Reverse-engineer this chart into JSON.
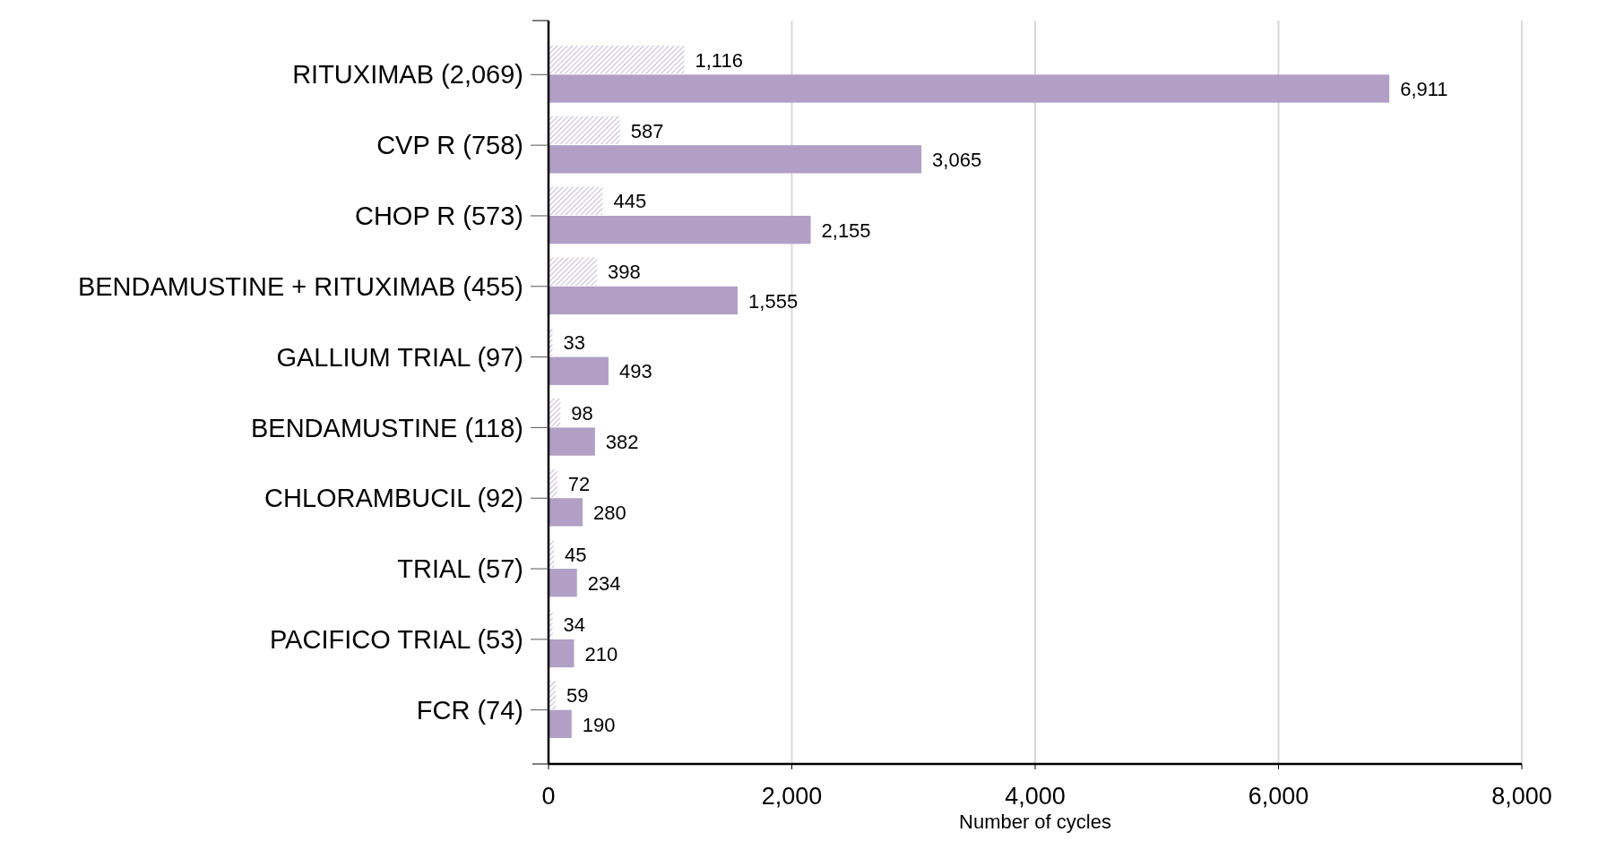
{
  "chart_data": {
    "type": "bar",
    "orientation": "horizontal",
    "xlabel": "Number of cycles",
    "categories": [
      "RITUXIMAB (2,069)",
      "CVP R (758)",
      "CHOP R (573)",
      "BENDAMUSTINE + RITUXIMAB (455)",
      "GALLIUM TRIAL (97)",
      "BENDAMUSTINE (118)",
      "CHLORAMBUCIL (92)",
      "TRIAL (57)",
      "PACIFICO TRIAL (53)",
      "FCR (74)"
    ],
    "series": [
      {
        "color": "#c9bcdb",
        "values": [
          1116,
          587,
          445,
          398,
          33,
          98,
          72,
          45,
          34,
          59
        ],
        "value_labels": [
          "1,116",
          "587",
          "445",
          "398",
          "33",
          "98",
          "72",
          "45",
          "34",
          "59"
        ]
      },
      {
        "color": "#b19fc6",
        "values": [
          6911,
          3065,
          2155,
          1555,
          493,
          382,
          280,
          234,
          210,
          190
        ],
        "value_labels": [
          "6,911",
          "3,065",
          "2,155",
          "1,555",
          "493",
          "382",
          "280",
          "234",
          "210",
          "190"
        ]
      }
    ],
    "xlim": [
      0,
      8000
    ],
    "xticks": [
      {
        "value": 0,
        "label": "0"
      },
      {
        "value": 2000,
        "label": "2,000"
      },
      {
        "value": 4000,
        "label": "4,000"
      },
      {
        "value": 6000,
        "label": "6,000"
      },
      {
        "value": 8000,
        "label": "8,000"
      }
    ],
    "grid": "x"
  }
}
